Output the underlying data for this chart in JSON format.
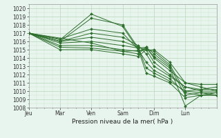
{
  "bg_color": "#e8f4ee",
  "plot_bg_color": "#e8f4ee",
  "grid_major_color": "#b8d8b8",
  "grid_minor_color": "#c8e8c8",
  "line_color": "#2d6e2d",
  "xlabel": "Pression niveau de la mer( hPa )",
  "ylim": [
    1008,
    1020.5
  ],
  "ytick_min": 1008,
  "ytick_max": 1020,
  "day_labels": [
    "Jeu",
    "Mar",
    "Ven",
    "Sam",
    "Dim",
    "Lun"
  ],
  "day_positions": [
    0.0,
    1.0,
    2.0,
    3.0,
    4.0,
    5.0
  ],
  "xlim": [
    0.0,
    6.0
  ],
  "lines": [
    [
      [
        0.0,
        1017.0
      ],
      [
        1.0,
        1016.2
      ],
      [
        2.0,
        1019.3
      ],
      [
        3.0,
        1017.8
      ],
      [
        3.5,
        1015.0
      ],
      [
        3.75,
        1012.2
      ],
      [
        4.0,
        1011.8
      ],
      [
        4.5,
        1011.0
      ],
      [
        5.0,
        1009.2
      ],
      [
        5.5,
        1009.5
      ],
      [
        6.0,
        1009.8
      ]
    ],
    [
      [
        0.0,
        1017.0
      ],
      [
        1.0,
        1016.0
      ],
      [
        2.0,
        1018.8
      ],
      [
        3.0,
        1018.0
      ],
      [
        3.5,
        1015.2
      ],
      [
        3.75,
        1012.8
      ],
      [
        4.0,
        1012.2
      ],
      [
        4.5,
        1011.2
      ],
      [
        5.0,
        1010.0
      ],
      [
        5.5,
        1009.8
      ],
      [
        6.0,
        1009.5
      ]
    ],
    [
      [
        0.0,
        1017.0
      ],
      [
        1.0,
        1016.3
      ],
      [
        2.0,
        1017.5
      ],
      [
        3.0,
        1017.0
      ],
      [
        3.5,
        1015.0
      ],
      [
        3.75,
        1013.5
      ],
      [
        4.0,
        1012.5
      ],
      [
        4.5,
        1011.5
      ],
      [
        5.0,
        1009.8
      ],
      [
        5.5,
        1009.5
      ],
      [
        6.0,
        1009.5
      ]
    ],
    [
      [
        0.0,
        1017.0
      ],
      [
        1.0,
        1016.0
      ],
      [
        2.0,
        1017.0
      ],
      [
        3.0,
        1016.5
      ],
      [
        3.5,
        1015.5
      ],
      [
        3.75,
        1014.5
      ],
      [
        4.0,
        1013.0
      ],
      [
        4.5,
        1011.8
      ],
      [
        5.0,
        1010.5
      ],
      [
        5.5,
        1010.0
      ],
      [
        6.0,
        1010.0
      ]
    ],
    [
      [
        0.0,
        1017.0
      ],
      [
        1.0,
        1016.0
      ],
      [
        2.0,
        1016.5
      ],
      [
        3.0,
        1016.0
      ],
      [
        3.5,
        1015.3
      ],
      [
        3.75,
        1015.0
      ],
      [
        4.0,
        1013.5
      ],
      [
        4.5,
        1012.0
      ],
      [
        5.0,
        1010.5
      ],
      [
        5.5,
        1010.2
      ],
      [
        6.0,
        1010.2
      ]
    ],
    [
      [
        0.0,
        1017.0
      ],
      [
        1.0,
        1015.8
      ],
      [
        2.0,
        1016.0
      ],
      [
        3.0,
        1015.5
      ],
      [
        3.5,
        1015.2
      ],
      [
        3.75,
        1015.3
      ],
      [
        4.0,
        1014.0
      ],
      [
        4.5,
        1012.5
      ],
      [
        5.0,
        1011.0
      ],
      [
        5.5,
        1010.5
      ],
      [
        6.0,
        1010.0
      ]
    ],
    [
      [
        0.0,
        1017.0
      ],
      [
        1.0,
        1015.5
      ],
      [
        2.0,
        1015.5
      ],
      [
        3.0,
        1015.0
      ],
      [
        3.5,
        1014.8
      ],
      [
        3.75,
        1015.2
      ],
      [
        4.0,
        1014.2
      ],
      [
        4.5,
        1012.8
      ],
      [
        5.0,
        1008.2
      ],
      [
        5.5,
        1009.5
      ],
      [
        6.0,
        1009.5
      ]
    ],
    [
      [
        0.0,
        1017.0
      ],
      [
        1.0,
        1015.3
      ],
      [
        2.0,
        1015.2
      ],
      [
        3.0,
        1014.8
      ],
      [
        3.5,
        1014.5
      ],
      [
        3.75,
        1015.3
      ],
      [
        4.0,
        1014.5
      ],
      [
        4.5,
        1013.0
      ],
      [
        5.0,
        1009.5
      ],
      [
        5.5,
        1009.8
      ],
      [
        6.0,
        1009.8
      ]
    ],
    [
      [
        0.0,
        1017.0
      ],
      [
        1.0,
        1015.0
      ],
      [
        2.0,
        1015.0
      ],
      [
        3.0,
        1014.5
      ],
      [
        3.5,
        1014.2
      ],
      [
        3.75,
        1015.0
      ],
      [
        4.0,
        1014.8
      ],
      [
        4.5,
        1013.2
      ],
      [
        5.0,
        1010.0
      ],
      [
        5.5,
        1010.2
      ],
      [
        6.0,
        1010.5
      ]
    ],
    [
      [
        0.0,
        1017.0
      ],
      [
        2.0,
        1015.8
      ],
      [
        3.0,
        1014.8
      ],
      [
        4.0,
        1015.0
      ],
      [
        4.5,
        1013.5
      ],
      [
        5.0,
        1011.0
      ],
      [
        5.5,
        1010.8
      ],
      [
        6.0,
        1010.8
      ]
    ]
  ],
  "tick_fontsize": 5.5,
  "xlabel_fontsize": 6.5,
  "linewidth": 0.7,
  "markersize": 2.0
}
